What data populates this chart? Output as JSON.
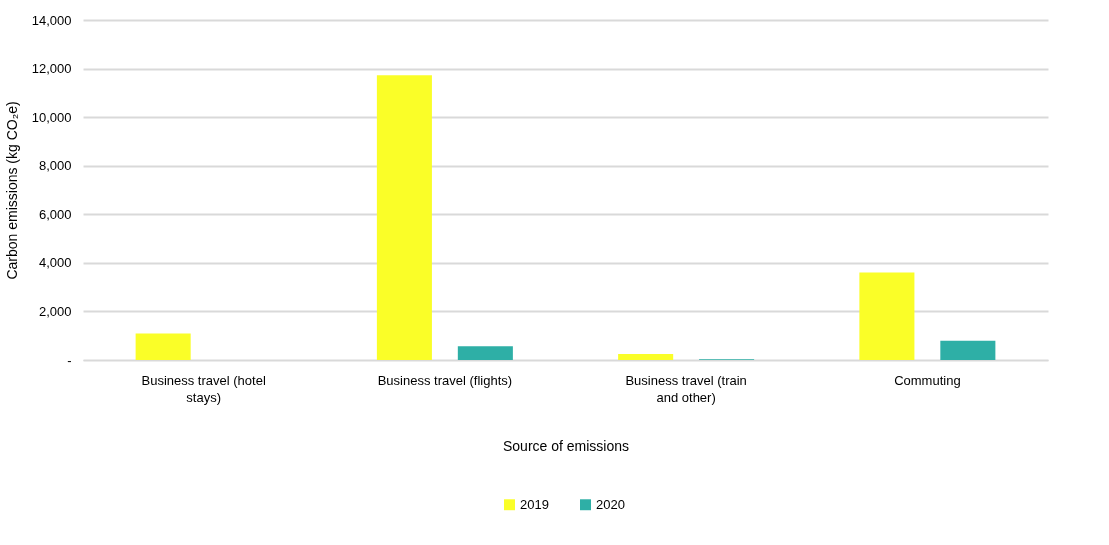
{
  "chart_data": {
    "type": "bar",
    "xlabel": "Source of emissions",
    "ylabel": "Carbon emissions (kg CO₂e)",
    "categories": [
      "Business travel (hotel stays)",
      "Business travel (flights)",
      "Business travel (train and other)",
      "Commuting"
    ],
    "series": [
      {
        "name": "2019",
        "color": "#fafe28",
        "values": [
          1090,
          11730,
          250,
          3600
        ]
      },
      {
        "name": "2020",
        "color": "#2eafa6",
        "values": [
          0,
          570,
          30,
          790
        ]
      }
    ],
    "ylim": [
      0,
      14000
    ],
    "yticks": [
      {
        "value": 0,
        "label": "-"
      },
      {
        "value": 2000,
        "label": "2,000"
      },
      {
        "value": 4000,
        "label": "4,000"
      },
      {
        "value": 6000,
        "label": "6,000"
      },
      {
        "value": 8000,
        "label": "8,000"
      },
      {
        "value": 10000,
        "label": "10,000"
      },
      {
        "value": 12000,
        "label": "12,000"
      },
      {
        "value": 14000,
        "label": "14,000"
      }
    ],
    "grid": "y",
    "legend": "bottom"
  }
}
